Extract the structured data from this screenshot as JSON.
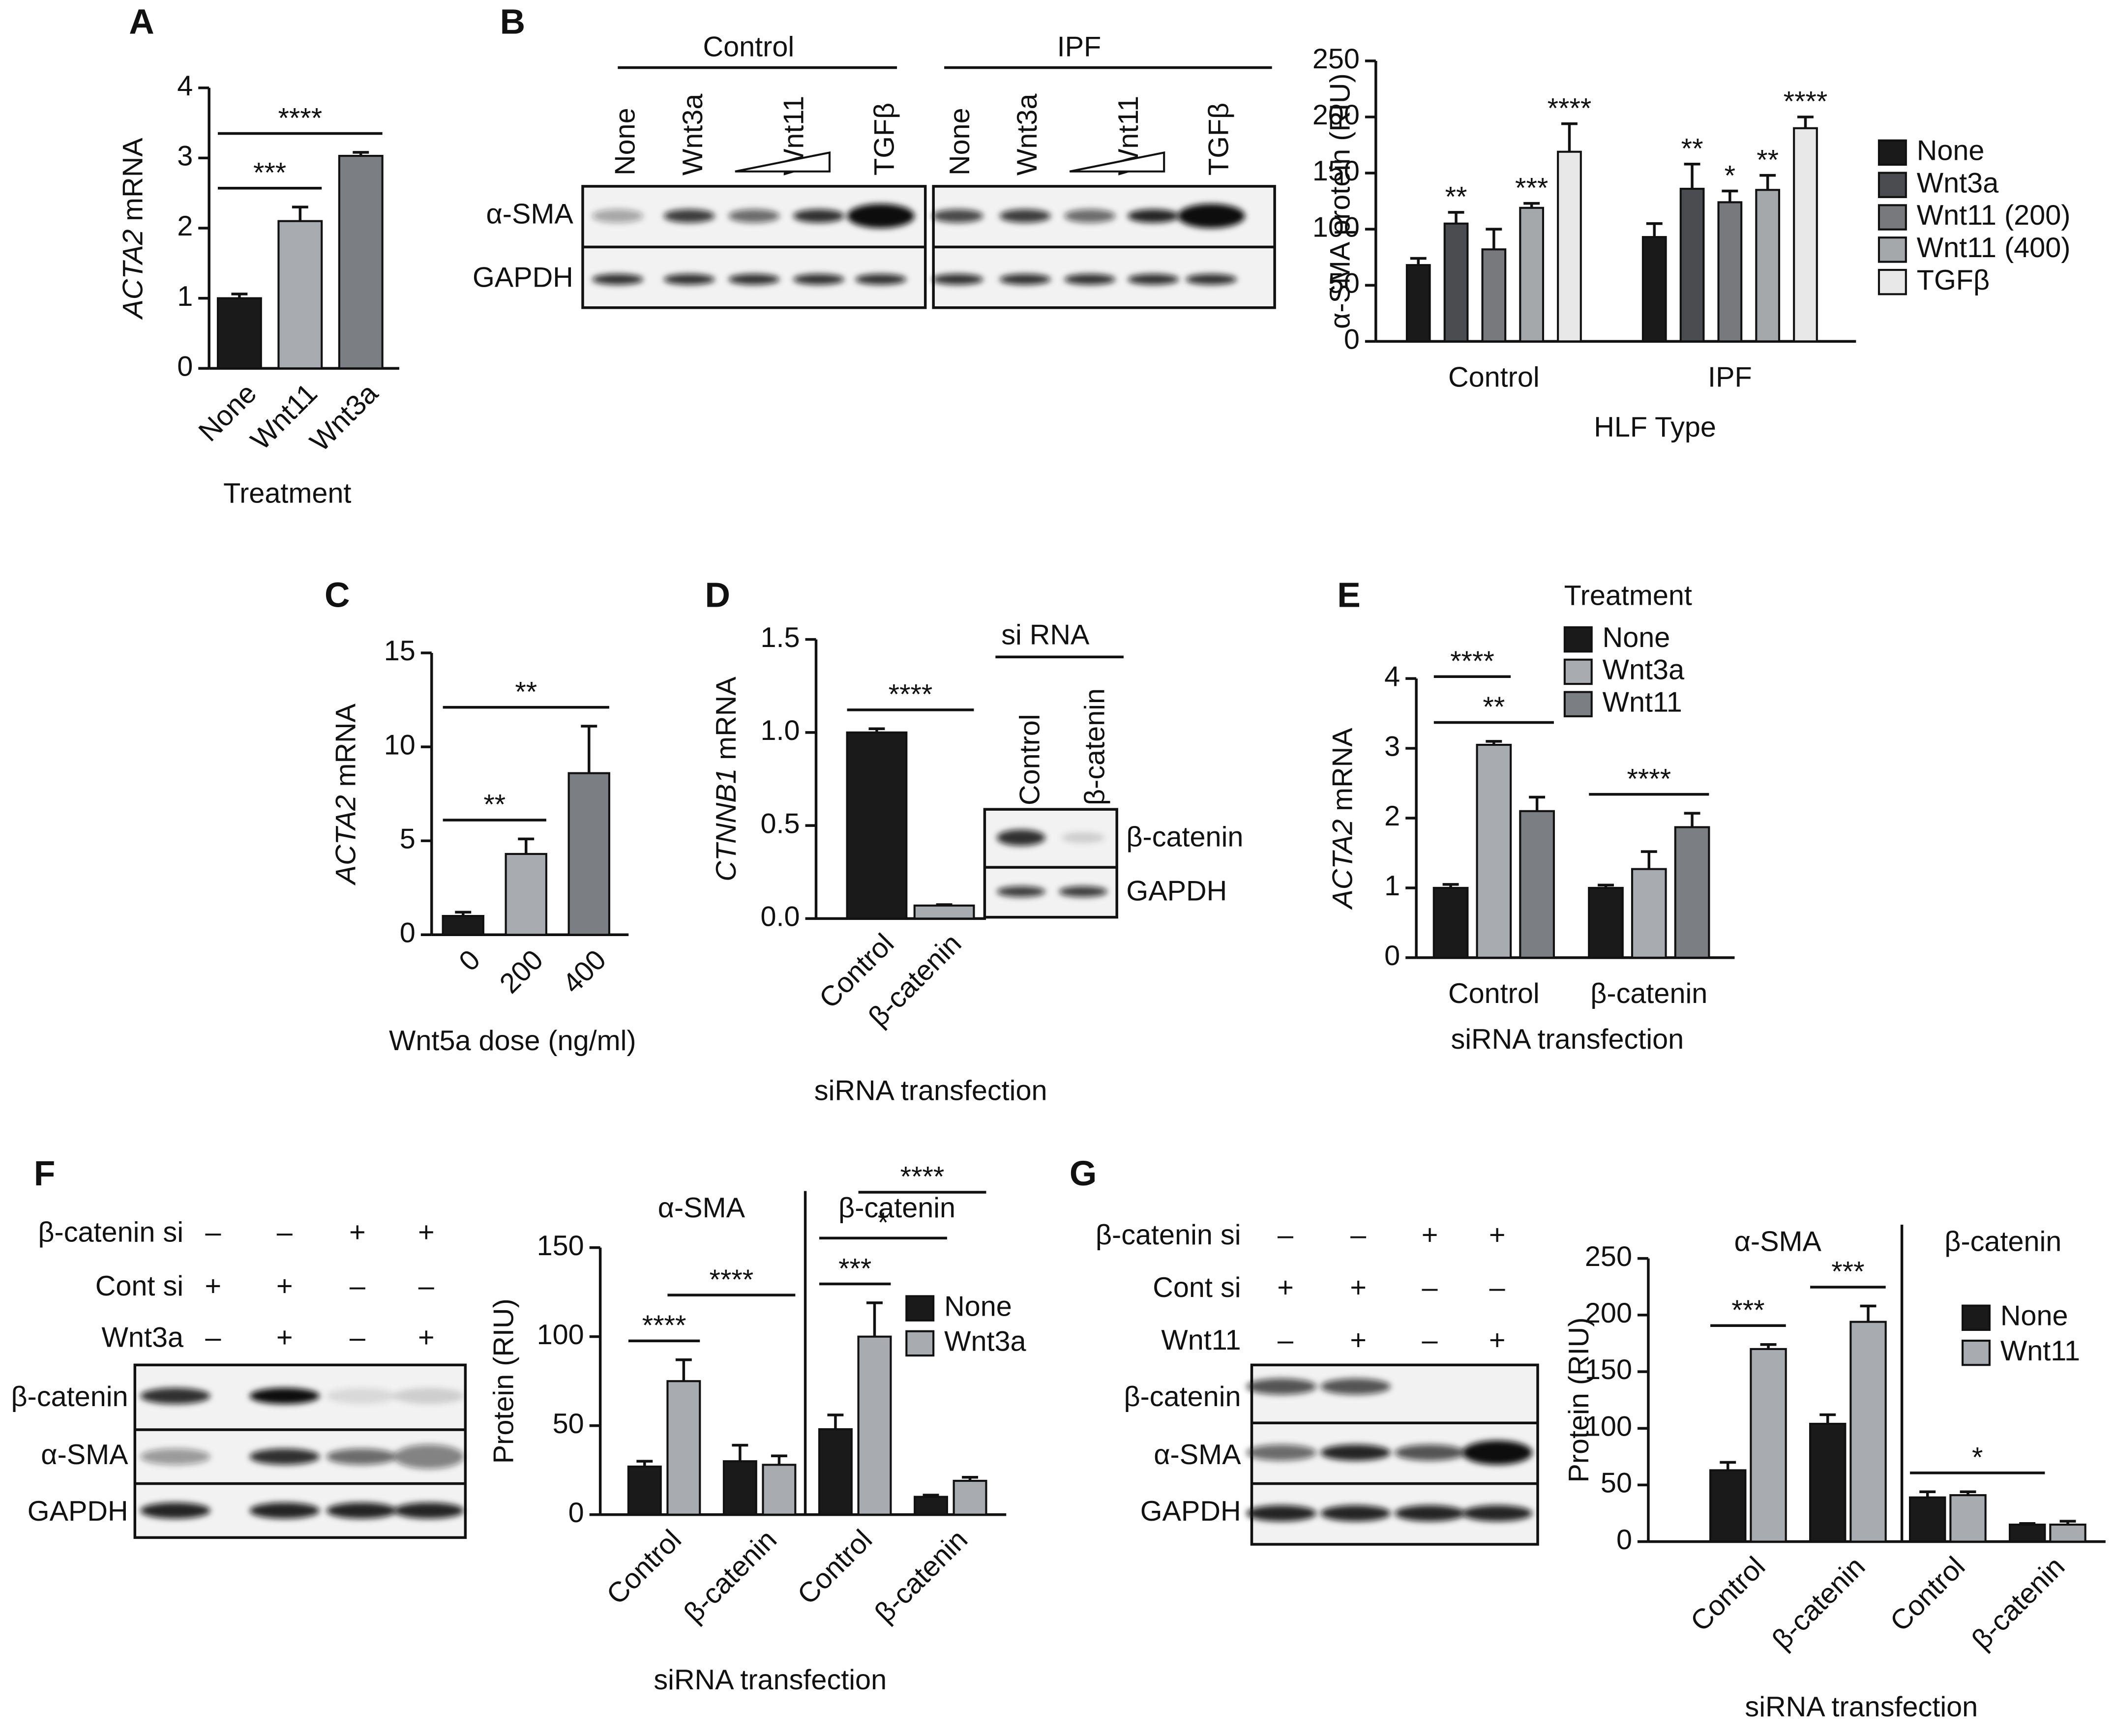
{
  "panel_labels": [
    "A",
    "B",
    "C",
    "D",
    "E",
    "F",
    "G"
  ],
  "blots": [
    {
      "groups": [
        "Control",
        "IPF"
      ],
      "lanes": [
        "None",
        "Wnt3a",
        "Wnt11",
        "TGFβ"
      ],
      "rows": [
        "α-SMA",
        "GAPDH"
      ]
    },
    {
      "header": "si RNA",
      "lanes": [
        "Control",
        "β-catenin"
      ],
      "rows": [
        "β-catenin",
        "GAPDH"
      ]
    },
    {
      "conditions": [
        {
          "label": "β-catenin si",
          "marks": [
            "–",
            "–",
            "+",
            "+"
          ]
        },
        {
          "label": "Cont si",
          "marks": [
            "+",
            "+",
            "–",
            "–"
          ]
        },
        {
          "label": "Wnt3a",
          "marks": [
            "–",
            "+",
            "–",
            "+"
          ]
        }
      ],
      "rows": [
        "β-catenin",
        "α-SMA",
        "GAPDH"
      ]
    },
    {
      "conditions": [
        {
          "label": "β-catenin si",
          "marks": [
            "–",
            "–",
            "+",
            "+"
          ]
        },
        {
          "label": "Cont si",
          "marks": [
            "+",
            "+",
            "–",
            "–"
          ]
        },
        {
          "label": "Wnt11",
          "marks": [
            "–",
            "+",
            "–",
            "+"
          ]
        }
      ],
      "rows": [
        "β-catenin",
        "α-SMA",
        "GAPDH"
      ]
    }
  ],
  "chart_data": [
    {
      "type": "bar",
      "categories": [
        "None",
        "Wnt11",
        "Wnt3a"
      ],
      "values": [
        1,
        2.1,
        3.03
      ],
      "errors": [
        0.06,
        0.2,
        0.05
      ],
      "colors": [
        "#1a1a1a",
        "#a8acb0",
        "#7b7e82"
      ],
      "ylim": [
        0,
        4
      ],
      "yticks": [
        0,
        1,
        2,
        3,
        4
      ],
      "ylabel": [
        {
          "text": "ACTA2",
          "italic": true
        },
        {
          "text": "mRNA"
        }
      ],
      "xlabel": "Treatment",
      "significance": [
        {
          "bars": [
            0,
            1
          ],
          "label": "***"
        },
        {
          "bars": [
            0,
            2
          ],
          "label": "****"
        }
      ]
    },
    {
      "type": "bar",
      "categories": [
        "Control",
        "IPF"
      ],
      "series": [
        {
          "name": "None",
          "color": "#1a1a1a",
          "values": [
            68,
            93
          ],
          "errors": [
            6,
            12
          ]
        },
        {
          "name": "Wnt3a",
          "color": "#4a4c4f",
          "values": [
            105,
            136
          ],
          "errors": [
            10,
            22
          ]
        },
        {
          "name": "Wnt11 (200)",
          "color": "#77797c",
          "values": [
            82,
            124
          ],
          "errors": [
            18,
            10
          ]
        },
        {
          "name": "Wnt11 (400)",
          "color": "#a5a8ab",
          "values": [
            119,
            135
          ],
          "errors": [
            4,
            13
          ]
        },
        {
          "name": "TGFβ",
          "color": "#e8e8e8",
          "values": [
            169,
            190
          ],
          "errors": [
            25,
            10
          ]
        }
      ],
      "ylim": [
        0,
        250
      ],
      "yticks": [
        0,
        50,
        100,
        150,
        200,
        250
      ],
      "ylabel": [
        {
          "text": "α-SMA protein (RIU)"
        }
      ],
      "xlabel": "HLF Type",
      "significance": [
        {
          "bars": [
            1
          ],
          "label": "**"
        },
        {
          "bars": [
            3
          ],
          "label": "***"
        },
        {
          "bars": [
            4
          ],
          "label": "****"
        },
        {
          "bars": [
            6
          ],
          "label": "**"
        },
        {
          "bars": [
            7
          ],
          "label": "*"
        },
        {
          "bars": [
            8
          ],
          "label": "**"
        },
        {
          "bars": [
            9
          ],
          "label": "****"
        }
      ]
    },
    {
      "type": "bar",
      "categories": [
        "0",
        "200",
        "400"
      ],
      "values": [
        1,
        4.3,
        8.6
      ],
      "errors": [
        0.2,
        0.8,
        2.5
      ],
      "colors": [
        "#1a1a1a",
        "#a8acb0",
        "#7b7e82"
      ],
      "ylim": [
        0,
        15
      ],
      "yticks": [
        0,
        5,
        10,
        15
      ],
      "ylabel": [
        {
          "text": "ACTA2",
          "italic": true
        },
        {
          "text": "mRNA"
        }
      ],
      "xlabel": "Wnt5a dose (ng/ml)",
      "significance": [
        {
          "bars": [
            0,
            1
          ],
          "label": "**"
        },
        {
          "bars": [
            0,
            2
          ],
          "label": "**"
        }
      ]
    },
    {
      "type": "bar",
      "categories": [
        "Control",
        "β-catenin"
      ],
      "values": [
        1.0,
        0.07
      ],
      "errors": [
        0.02,
        0.005
      ],
      "colors": [
        "#1a1a1a",
        "#a8acb0"
      ],
      "ylim": [
        0,
        1.5
      ],
      "yticks": [
        {
          "value": 0,
          "label": "0.0"
        },
        0.5,
        {
          "value": 1,
          "label": "1.0"
        },
        1.5
      ],
      "ylabel": [
        {
          "text": "CTNNB1",
          "italic": true
        },
        {
          "text": "mRNA"
        }
      ],
      "xlabel": "siRNA transfection",
      "significance": [
        {
          "bars": [
            0,
            1
          ],
          "label": "****"
        }
      ]
    },
    {
      "type": "bar",
      "categories": [
        "Control",
        "β-catenin"
      ],
      "legend_title": "Treatment",
      "series": [
        {
          "name": "None",
          "color": "#1a1a1a",
          "values": [
            1.0,
            1.0
          ],
          "errors": [
            0.05,
            0.04
          ]
        },
        {
          "name": "Wnt3a",
          "color": "#a8acb0",
          "values": [
            3.05,
            1.27
          ],
          "errors": [
            0.05,
            0.25
          ]
        },
        {
          "name": "Wnt11",
          "color": "#7b7e82",
          "values": [
            2.1,
            1.87
          ],
          "errors": [
            0.2,
            0.2
          ]
        }
      ],
      "ylim": [
        0,
        4
      ],
      "yticks": [
        0,
        1,
        2,
        3,
        4
      ],
      "ylabel": [
        {
          "text": "ACTA2",
          "italic": true
        },
        {
          "text": "mRNA"
        }
      ],
      "xlabel": "siRNA transfection",
      "significance": [
        {
          "bars": [
            0,
            2
          ],
          "label": "**"
        },
        {
          "bars": [
            0,
            1
          ],
          "label": "****"
        },
        {
          "bars": [
            3,
            5
          ],
          "label": "****"
        }
      ]
    },
    {
      "type": "bar",
      "categories": [
        "Control",
        "β-catenin",
        "Control",
        "β-catenin"
      ],
      "sections": [
        "α-SMA",
        "β-catenin"
      ],
      "series": [
        {
          "name": "None",
          "color": "#1a1a1a",
          "values": [
            27,
            30,
            48,
            10
          ],
          "errors": [
            3,
            9,
            8,
            1
          ]
        },
        {
          "name": "Wnt3a",
          "color": "#a8acb0",
          "values": [
            75,
            28,
            100,
            19
          ],
          "errors": [
            12,
            5,
            19,
            2
          ]
        }
      ],
      "ylim": [
        0,
        150
      ],
      "yticks": [
        0,
        50,
        100,
        150
      ],
      "ylabel": [
        {
          "text": "Protein (RIU)"
        }
      ],
      "xlabel": "siRNA transfection",
      "significance": [
        {
          "bars": [
            0,
            1
          ],
          "label": "****"
        },
        {
          "bars": [
            1,
            3
          ],
          "label": "****"
        },
        {
          "bars": [
            4,
            5
          ],
          "label": "***"
        },
        {
          "bars": [
            4,
            6
          ],
          "label": "*"
        },
        {
          "bars": [
            5,
            7
          ],
          "label": "****"
        }
      ]
    },
    {
      "type": "bar",
      "categories": [
        "Control",
        "β-catenin",
        "Control",
        "β-catenin"
      ],
      "sections": [
        "α-SMA",
        "β-catenin"
      ],
      "series": [
        {
          "name": "None",
          "color": "#1a1a1a",
          "values": [
            63,
            104,
            39,
            15
          ],
          "errors": [
            7,
            8,
            5,
            1
          ]
        },
        {
          "name": "Wnt11",
          "color": "#a8acb0",
          "values": [
            170,
            194,
            41,
            15
          ],
          "errors": [
            4,
            14,
            3,
            3
          ]
        }
      ],
      "ylim": [
        0,
        250
      ],
      "yticks": [
        0,
        50,
        100,
        150,
        200,
        250
      ],
      "ylabel": [
        {
          "text": "Protein (RIU)"
        }
      ],
      "xlabel": "siRNA transfection",
      "significance": [
        {
          "bars": [
            0,
            1
          ],
          "label": "***"
        },
        {
          "bars": [
            2,
            3
          ],
          "label": "***"
        },
        {
          "bars": [
            4,
            6
          ],
          "label": "*"
        }
      ]
    }
  ]
}
